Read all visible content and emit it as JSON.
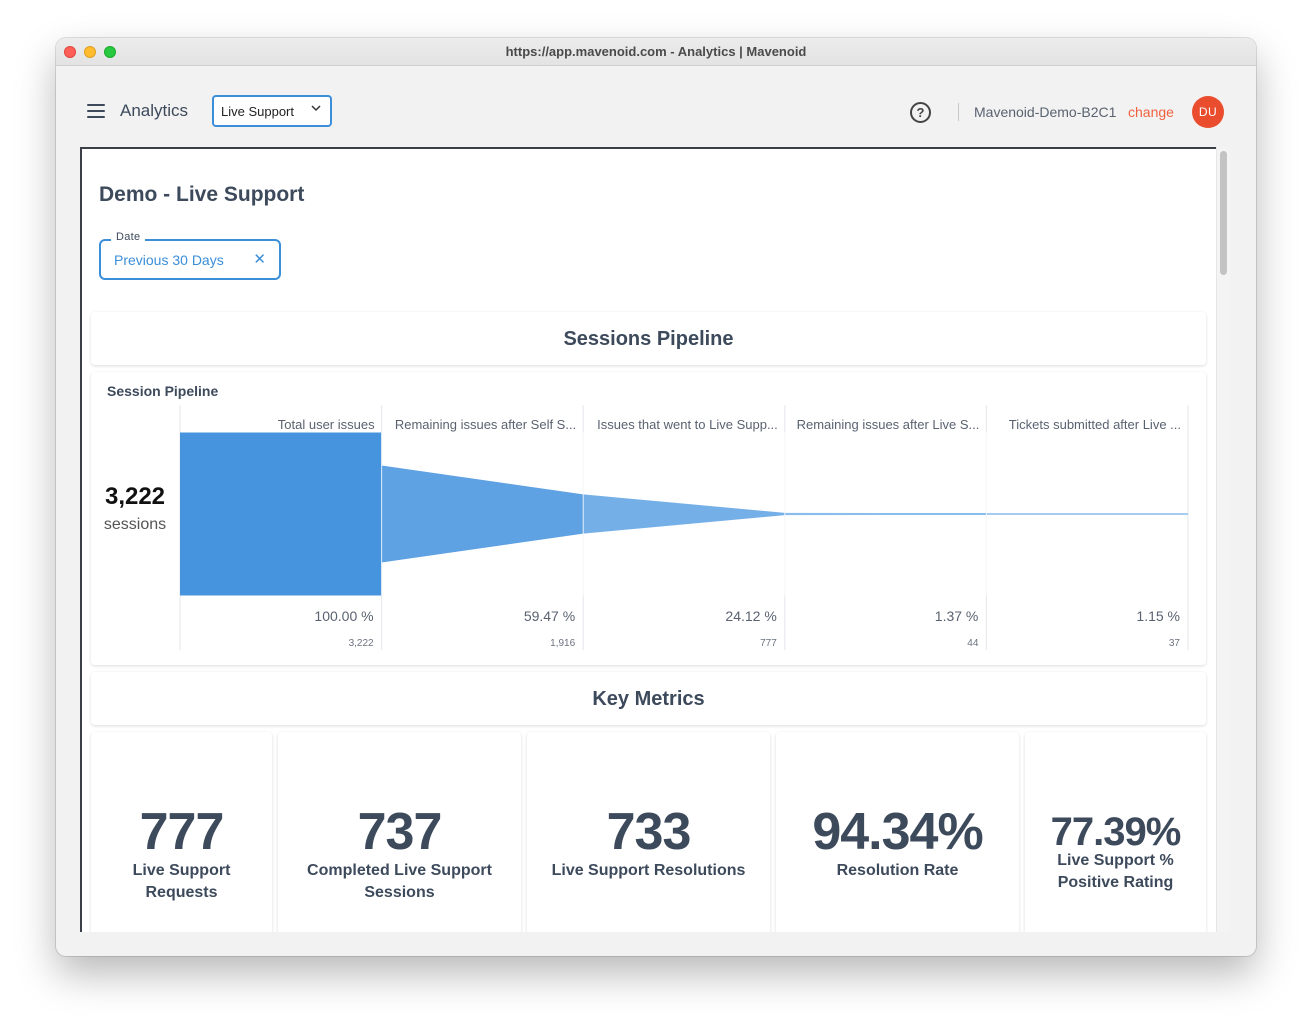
{
  "window": {
    "title": "https://app.mavenoid.com - Analytics | Mavenoid"
  },
  "appbar": {
    "menu_icon": "hamburger-icon",
    "title": "Analytics",
    "product_select": {
      "value": "Live Support",
      "icon": "chevron-down-icon"
    },
    "help_icon": "help-circle-icon",
    "help_glyph": "?",
    "account_name": "Mavenoid-Demo-B2C1",
    "change_label": "change",
    "avatar_initials": "DU",
    "avatar_color": "#ea4d2d",
    "accent_color": "#3b8ed8",
    "link_color": "#f0623e"
  },
  "page": {
    "title": "Demo - Live Support",
    "date_filter": {
      "label": "Date",
      "value": "Previous 30 Days",
      "clear_glyph": "✕"
    }
  },
  "sessions_pipeline": {
    "section_title": "Sessions Pipeline",
    "chart_title": "Session Pipeline",
    "total": "3,222",
    "unit": "sessions"
  },
  "chart_data": {
    "type": "funnel",
    "title": "Session Pipeline",
    "colors": [
      "#4693de",
      "#5ea2e3",
      "#74afe7",
      "#8bbdec",
      "#a6cdf0"
    ],
    "stages": [
      {
        "label": "Total user issues",
        "percent": "100.00 %",
        "count": "3,222",
        "value": 3222
      },
      {
        "label": "Remaining issues after Self S...",
        "percent": "59.47 %",
        "count": "1,916",
        "value": 1916
      },
      {
        "label": "Issues that went to Live Supp...",
        "percent": "24.12 %",
        "count": "777",
        "value": 777
      },
      {
        "label": "Remaining issues after Live S...",
        "percent": "1.37 %",
        "count": "44",
        "value": 44
      },
      {
        "label": "Tickets submitted after Live ...",
        "percent": "1.15 %",
        "count": "37",
        "value": 37
      }
    ]
  },
  "key_metrics": {
    "section_title": "Key Metrics",
    "cards": [
      {
        "value": "777",
        "label": "Live Support Requests"
      },
      {
        "value": "737",
        "label": "Completed Live Support Sessions"
      },
      {
        "value": "733",
        "label": "Live Support Resolutions"
      },
      {
        "value": "94.34%",
        "label": "Resolution Rate"
      },
      {
        "value": "77.39%",
        "label": "Live Support % Positive Rating"
      }
    ]
  }
}
